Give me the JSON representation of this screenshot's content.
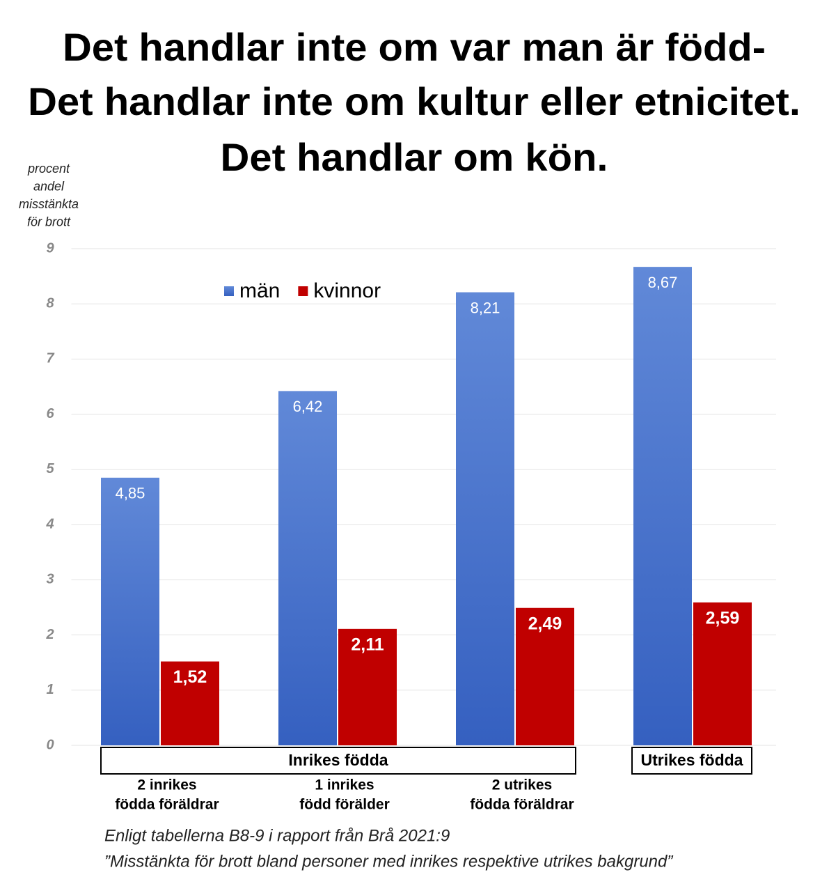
{
  "chart_data": {
    "type": "bar",
    "title": [
      "Det handlar inte om var man är född-",
      "Det handlar inte om kultur eller etnicitet.",
      "Det handlar om kön."
    ],
    "y_label": [
      "procent",
      "andel",
      "misstänkta",
      "för brott"
    ],
    "categories": [
      [
        "2 inrikes",
        "födda föräldrar"
      ],
      [
        "1 inrikes",
        "född förälder"
      ],
      [
        "2 utrikes",
        "födda föräldrar"
      ],
      null
    ],
    "groups": [
      "Inrikes födda",
      "Utrikes födda"
    ],
    "series": [
      {
        "name": "män",
        "color": "#4472c4",
        "values": [
          4.85,
          6.42,
          8.21,
          8.67
        ],
        "value_labels": [
          "4,85",
          "6,42",
          "8,21",
          "8,67"
        ]
      },
      {
        "name": "kvinnor",
        "color": "#c00000",
        "values": [
          1.52,
          2.11,
          2.49,
          2.59
        ],
        "value_labels": [
          "1,52",
          "2,11",
          "2,49",
          "2,59"
        ]
      }
    ],
    "ylim": [
      0,
      9
    ],
    "yticks": [
      0,
      1,
      2,
      3,
      4,
      5,
      6,
      7,
      8,
      9
    ],
    "grid": true,
    "legend": "top",
    "notes": [
      "Enligt tabellerna B8-9 i rapport från Brå 2021:9",
      "”Misstänkta för brott bland personer med inrikes respektive utrikes bakgrund”"
    ]
  }
}
